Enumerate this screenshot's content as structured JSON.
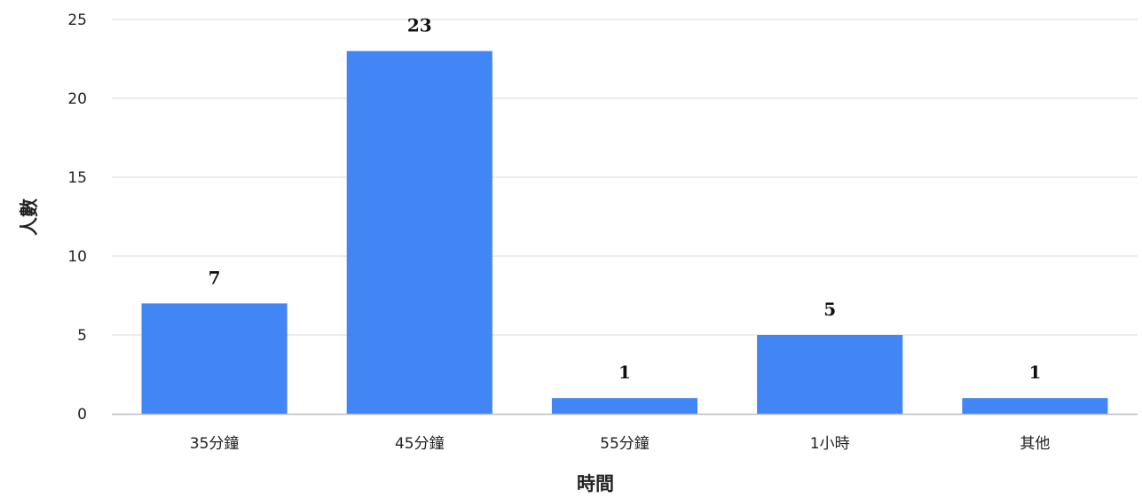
{
  "chart_data": {
    "type": "bar",
    "categories": [
      "35分鐘",
      "45分鐘",
      "55分鐘",
      "1小時",
      "其他"
    ],
    "values": [
      7,
      23,
      1,
      5,
      1
    ],
    "data_labels": [
      "7",
      "23",
      "1",
      "5",
      "1"
    ],
    "title": "",
    "xlabel": "時間",
    "ylabel": "人數",
    "ylim": [
      0,
      25
    ],
    "yticks": [
      0,
      5,
      10,
      15,
      20,
      25
    ],
    "ytick_labels": [
      "0",
      "5",
      "10",
      "15",
      "20",
      "25"
    ],
    "grid": true,
    "legend": "none",
    "colors": {
      "bar": "#4285f4",
      "grid": "#d9d9d9",
      "axis": "#bdbdbd",
      "text": "#222222"
    }
  }
}
